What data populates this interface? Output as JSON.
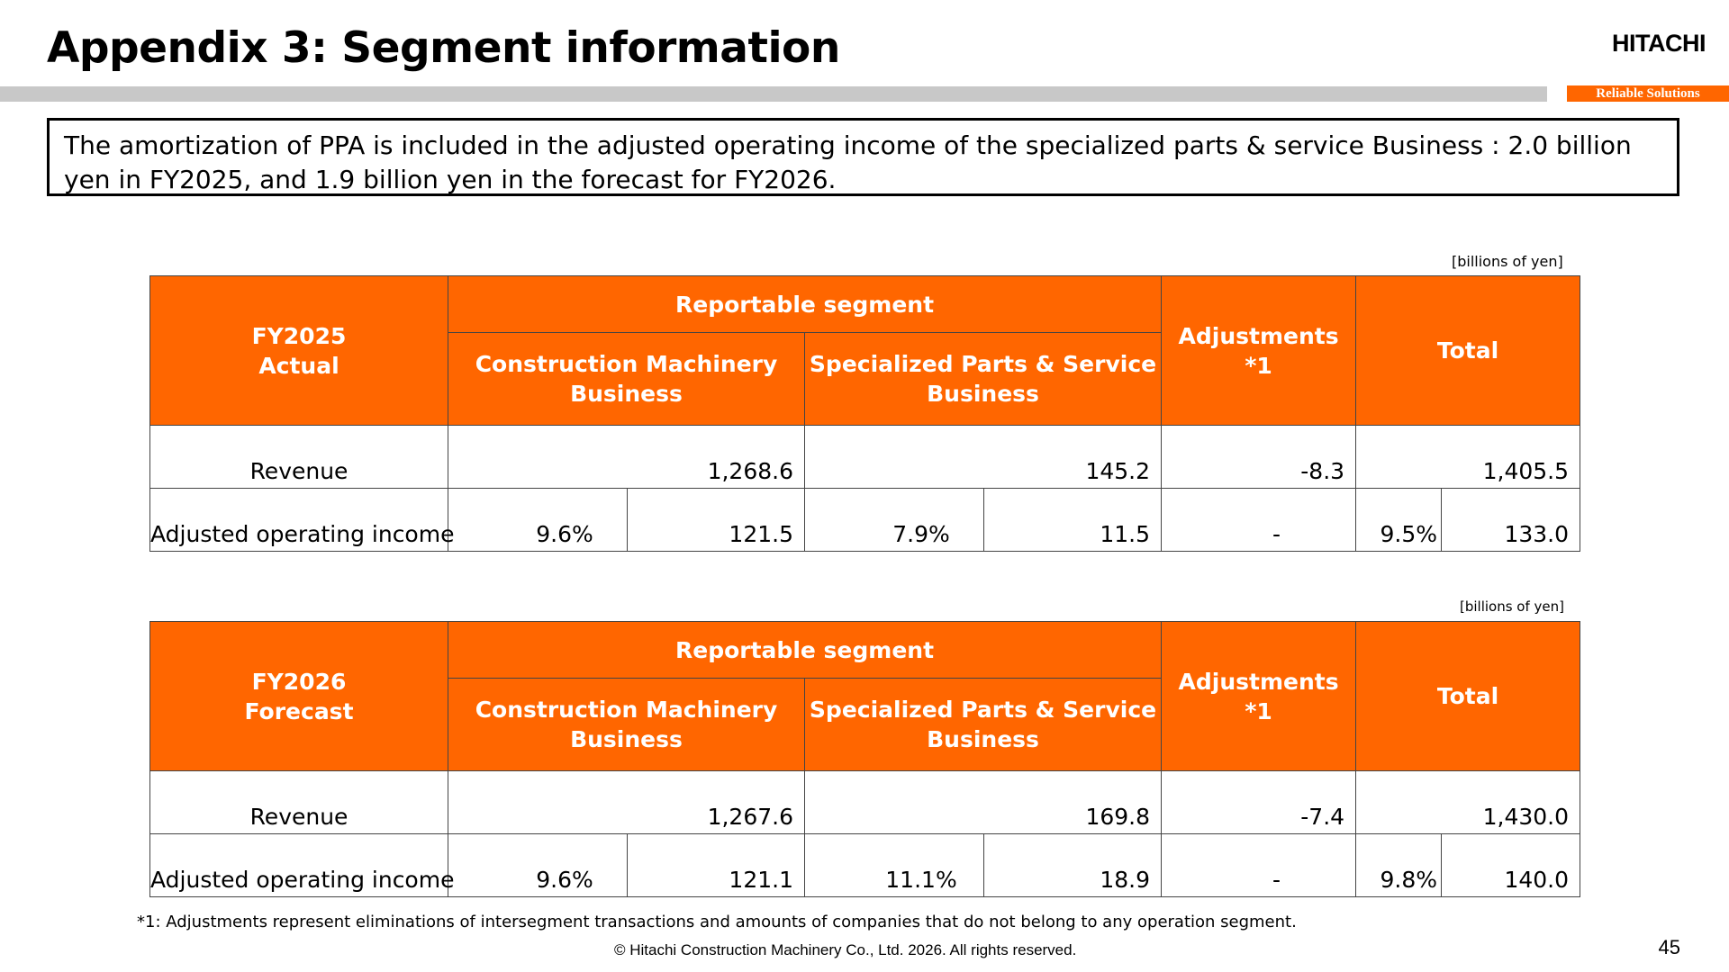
{
  "header": {
    "title": "Appendix 3: Segment information",
    "logo": "HITACHI",
    "tagline": "Reliable Solutions"
  },
  "note": "The amortization of PPA is included in the adjusted operating income of the specialized parts & service Business : 2.0 billion yen in FY2025, and 1.9 billion yen in the forecast for FY2026.",
  "tables": [
    {
      "unit": "[billions of yen]",
      "period_line1": "FY2025",
      "period_line2": "Actual",
      "reportable": "Reportable segment",
      "cm": "Construction Machinery Business",
      "sp": "Specialized Parts & Service Business",
      "adj_line1": "Adjustments",
      "adj_line2": "*1",
      "total": "Total",
      "rows": {
        "revenue": {
          "label": "Revenue",
          "cm": "1,268.6",
          "sp": "145.2",
          "adj": "-8.3",
          "total": "1,405.5"
        },
        "income": {
          "label": "Adjusted operating income",
          "cm_pct": "9.6%",
          "cm": "121.5",
          "sp_pct": "7.9%",
          "sp": "11.5",
          "adj": "-",
          "total_pct": "9.5%",
          "total": "133.0"
        }
      }
    },
    {
      "unit": "[billions of yen]",
      "period_line1": "FY2026",
      "period_line2": "Forecast",
      "reportable": "Reportable segment",
      "cm": "Construction Machinery Business",
      "sp": "Specialized Parts & Service Business",
      "adj_line1": "Adjustments",
      "adj_line2": "*1",
      "total": "Total",
      "rows": {
        "revenue": {
          "label": "Revenue",
          "cm": "1,267.6",
          "sp": "169.8",
          "adj": "-7.4",
          "total": "1,430.0"
        },
        "income": {
          "label": "Adjusted operating income",
          "cm_pct": "9.6%",
          "cm": "121.1",
          "sp_pct": "11.1%",
          "sp": "18.9",
          "adj": "-",
          "total_pct": "9.8%",
          "total": "140.0"
        }
      }
    }
  ],
  "footnote": "*1: Adjustments represent eliminations of intersegment transactions and amounts of companies that do not belong to any operation segment.",
  "copyright": "© Hitachi Construction Machinery Co., Ltd. 2026. All rights reserved.",
  "page_number": "45"
}
